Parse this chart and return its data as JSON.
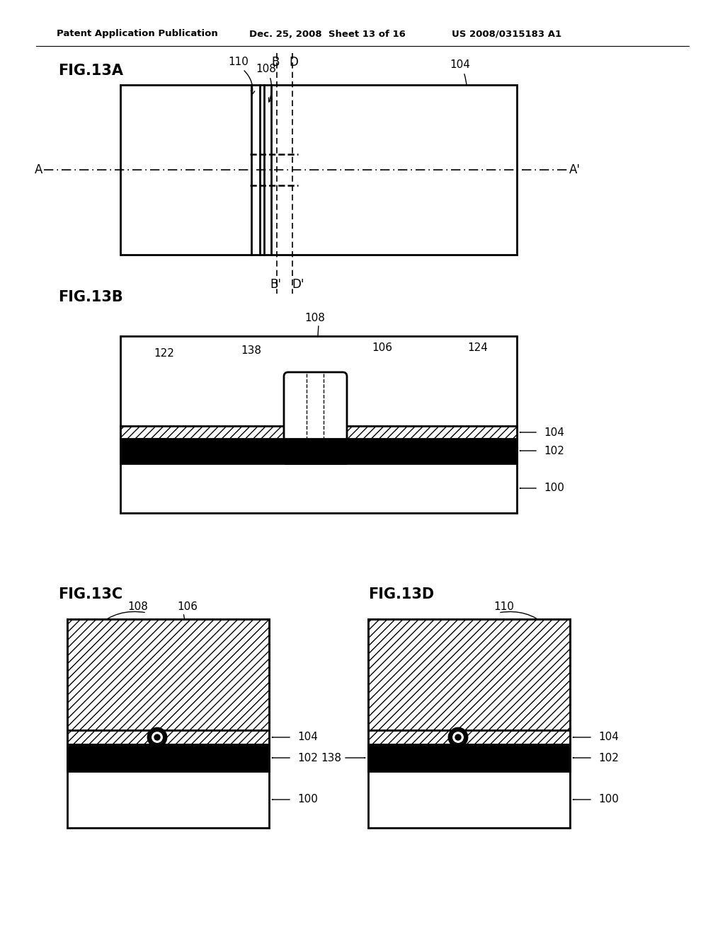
{
  "header_left": "Patent Application Publication",
  "header_mid": "Dec. 25, 2008  Sheet 13 of 16",
  "header_right": "US 2008/0315183 A1",
  "fig13a_label": "FIG.13A",
  "fig13b_label": "FIG.13B",
  "fig13c_label": "FIG.13C",
  "fig13d_label": "FIG.13D",
  "bg_color": "#ffffff",
  "line_color": "#000000"
}
